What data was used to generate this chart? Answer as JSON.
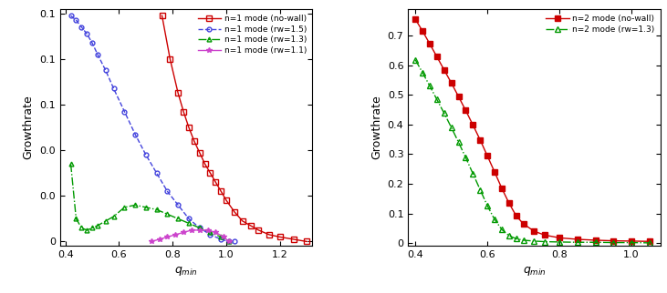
{
  "left": {
    "ylabel": "Growthrate",
    "xlabel": "q_min",
    "xlim": [
      0.38,
      1.32
    ],
    "ylim": [
      -0.002,
      0.102
    ],
    "yticks": [
      0.0,
      0.02,
      0.04,
      0.06,
      0.08,
      0.1
    ],
    "xticks": [
      0.4,
      0.6,
      0.8,
      1.0,
      1.2
    ],
    "series": [
      {
        "label": "n=1 mode (no-wall)",
        "color": "#cc0000",
        "linestyle": "-",
        "marker": "s",
        "markerfacecolor": "none",
        "markersize": 4,
        "markevery": 1,
        "x": [
          0.76,
          0.79,
          0.82,
          0.84,
          0.86,
          0.88,
          0.9,
          0.92,
          0.94,
          0.96,
          0.98,
          1.0,
          1.03,
          1.06,
          1.09,
          1.12,
          1.16,
          1.2,
          1.25,
          1.3
        ],
        "y": [
          0.099,
          0.08,
          0.065,
          0.057,
          0.05,
          0.044,
          0.039,
          0.034,
          0.03,
          0.026,
          0.022,
          0.018,
          0.013,
          0.009,
          0.007,
          0.005,
          0.003,
          0.002,
          0.001,
          0.0
        ]
      },
      {
        "label": "n=1 mode (rw=1.5)",
        "color": "#4444dd",
        "linestyle": "--",
        "marker": "o",
        "markerfacecolor": "none",
        "markersize": 3.5,
        "markevery": 1,
        "x": [
          0.42,
          0.44,
          0.46,
          0.48,
          0.5,
          0.52,
          0.55,
          0.58,
          0.62,
          0.66,
          0.7,
          0.74,
          0.78,
          0.82,
          0.86,
          0.9,
          0.94,
          0.98,
          1.01,
          1.03
        ],
        "y": [
          0.099,
          0.097,
          0.094,
          0.091,
          0.087,
          0.082,
          0.075,
          0.067,
          0.057,
          0.047,
          0.038,
          0.03,
          0.022,
          0.016,
          0.01,
          0.006,
          0.003,
          0.001,
          0.0,
          0.0
        ]
      },
      {
        "label": "n=1 mode (rw=1.3)",
        "color": "#009900",
        "linestyle": "-.",
        "marker": "^",
        "markerfacecolor": "none",
        "markersize": 3.5,
        "markevery": 1,
        "x": [
          0.42,
          0.44,
          0.46,
          0.48,
          0.5,
          0.52,
          0.55,
          0.58,
          0.62,
          0.66,
          0.7,
          0.74,
          0.78,
          0.82,
          0.86,
          0.9,
          0.94,
          0.98,
          1.01
        ],
        "y": [
          0.034,
          0.01,
          0.006,
          0.005,
          0.006,
          0.007,
          0.009,
          0.011,
          0.015,
          0.016,
          0.015,
          0.014,
          0.012,
          0.01,
          0.008,
          0.006,
          0.004,
          0.002,
          0.0
        ]
      },
      {
        "label": "n=1 mode (rw=1.1)",
        "color": "#cc44cc",
        "linestyle": "-",
        "marker": "*",
        "markerfacecolor": "#cc44cc",
        "markersize": 4,
        "markevery": 1,
        "x": [
          0.72,
          0.75,
          0.78,
          0.81,
          0.84,
          0.87,
          0.9,
          0.93,
          0.96,
          0.99,
          1.01
        ],
        "y": [
          0.0,
          0.001,
          0.002,
          0.003,
          0.004,
          0.005,
          0.005,
          0.005,
          0.004,
          0.002,
          0.0
        ]
      }
    ]
  },
  "right": {
    "ylabel": "Growthrate",
    "xlabel": "q_min",
    "xlim": [
      0.38,
      1.08
    ],
    "ylim": [
      -0.01,
      0.79
    ],
    "yticks": [
      0.0,
      0.1,
      0.2,
      0.3,
      0.4,
      0.5,
      0.6,
      0.7
    ],
    "xticks": [
      0.4,
      0.6,
      0.8,
      1.0
    ],
    "series": [
      {
        "label": "n=2 mode (no-wall)",
        "color": "#cc0000",
        "linestyle": "-",
        "marker": "s",
        "markerfacecolor": "#cc0000",
        "markersize": 4,
        "markevery": 1,
        "x": [
          0.4,
          0.42,
          0.44,
          0.46,
          0.48,
          0.5,
          0.52,
          0.54,
          0.56,
          0.58,
          0.6,
          0.62,
          0.64,
          0.66,
          0.68,
          0.7,
          0.73,
          0.76,
          0.8,
          0.85,
          0.9,
          0.95,
          1.0,
          1.05
        ],
        "y": [
          0.755,
          0.715,
          0.672,
          0.628,
          0.584,
          0.54,
          0.494,
          0.447,
          0.398,
          0.348,
          0.294,
          0.24,
          0.185,
          0.135,
          0.092,
          0.065,
          0.04,
          0.027,
          0.018,
          0.013,
          0.01,
          0.008,
          0.007,
          0.006
        ]
      },
      {
        "label": "n=2 mode (rw=1.3)",
        "color": "#009900",
        "linestyle": "-.",
        "marker": "^",
        "markerfacecolor": "none",
        "markersize": 4,
        "markevery": 1,
        "x": [
          0.4,
          0.42,
          0.44,
          0.46,
          0.48,
          0.5,
          0.52,
          0.54,
          0.56,
          0.58,
          0.6,
          0.62,
          0.64,
          0.66,
          0.68,
          0.7,
          0.73,
          0.76,
          0.8,
          0.85,
          0.9,
          0.95,
          1.0,
          1.05
        ],
        "y": [
          0.618,
          0.575,
          0.53,
          0.484,
          0.438,
          0.39,
          0.34,
          0.288,
          0.234,
          0.18,
          0.126,
          0.08,
          0.046,
          0.025,
          0.015,
          0.01,
          0.007,
          0.005,
          0.004,
          0.003,
          0.003,
          0.002,
          0.002,
          0.001
        ]
      }
    ]
  }
}
